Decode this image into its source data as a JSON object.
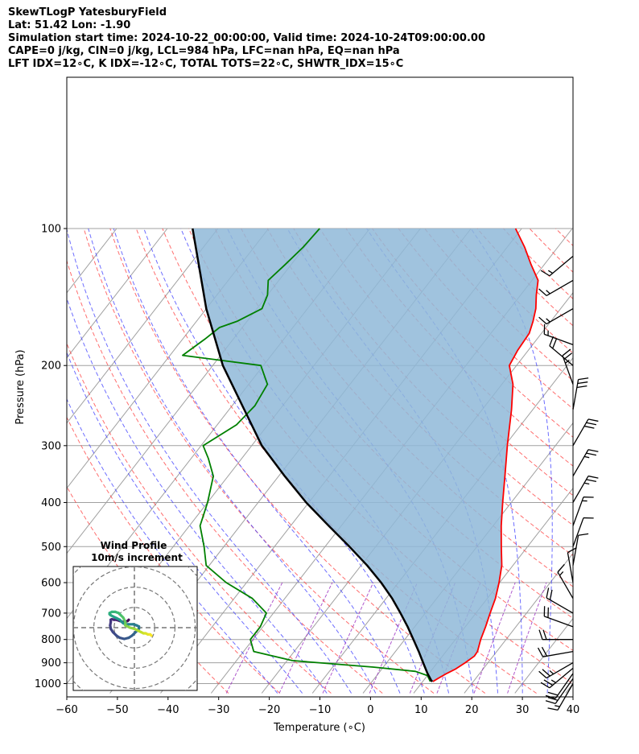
{
  "header": {
    "line1": "SkewTLogP YatesburyField",
    "line2": "Lat: 51.42   Lon: -1.90",
    "line3": "Simulation start time: 2024-10-22_00:00:00, Valid time: 2024-10-24T09:00:00.00",
    "line4": "CAPE=0 j/kg, CIN=0 j/kg, LCL=984 hPa, LFC=nan hPa, EQ=nan hPa",
    "line5": "LFT IDX=12∘C, K IDX=-12∘C, TOTAL TOTS=22∘C, SHWTR_IDX=15∘C"
  },
  "chart_data": [
    {
      "type": "line",
      "xlabel": "Temperature (∘C)",
      "ylabel": "Pressure (hPa)",
      "xlim": [
        -60,
        40
      ],
      "ylim": [
        1050,
        100
      ],
      "y_scale": "log",
      "skew": true,
      "x_ticks": [
        "−60",
        "−50",
        "−40",
        "−30",
        "−20",
        "−10",
        "0",
        "10",
        "20",
        "30",
        "40"
      ],
      "x_tick_values": [
        -60,
        -50,
        -40,
        -30,
        -20,
        -10,
        0,
        10,
        20,
        30,
        40
      ],
      "y_ticks": [
        "1000",
        "900",
        "800",
        "700",
        "600",
        "500",
        "400",
        "300",
        "200",
        "100"
      ],
      "y_tick_values": [
        1000,
        900,
        800,
        700,
        600,
        500,
        400,
        300,
        200,
        100
      ],
      "grid": true,
      "colors": {
        "temperature": "#ff0000",
        "dewpoint": "#008000",
        "parcel": "#000000",
        "cape_fill": "#8fb8d8",
        "dry_adiabat": "#ff3c3c",
        "moist_adiabat": "#3c3cff",
        "mixing_ratio": "#9b30c0",
        "isotherm": "#a0a0a0"
      },
      "series": [
        {
          "key": "temperature",
          "p": [
            990,
            975,
            950,
            930,
            900,
            870,
            850,
            800,
            750,
            700,
            650,
            600,
            550,
            500,
            450,
            400,
            350,
            300,
            250,
            220,
            200,
            185,
            170,
            160,
            150,
            140,
            130,
            120,
            110,
            100
          ],
          "t": [
            12,
            12.5,
            13.5,
            14.5,
            15.5,
            16.3,
            16.2,
            15,
            14,
            12.8,
            11.6,
            9.9,
            7.8,
            4.8,
            1.6,
            -1.7,
            -5.3,
            -9.5,
            -14.2,
            -17.8,
            -21.4,
            -22.1,
            -22.4,
            -23.5,
            -24.9,
            -26.9,
            -28.8,
            -32.6,
            -36.5,
            -41.2
          ]
        },
        {
          "key": "dewpoint",
          "p": [
            990,
            960,
            940,
            920,
            890,
            850,
            800,
            750,
            700,
            650,
            600,
            550,
            500,
            450,
            400,
            350,
            320,
            300,
            270,
            245,
            220,
            200,
            190,
            175,
            165,
            160,
            150,
            140,
            130,
            120,
            110,
            100
          ],
          "t": [
            11.5,
            10,
            7,
            -2,
            -19,
            -28,
            -30.5,
            -30.5,
            -31.4,
            -36.4,
            -44,
            -50.6,
            -53.9,
            -57.9,
            -60,
            -62.9,
            -66.6,
            -69.6,
            -66.2,
            -65.5,
            -66.3,
            -70.5,
            -87.5,
            -85.6,
            -84.5,
            -82,
            -79,
            -80,
            -82.1,
            -81.2,
            -80.3,
            -79.9
          ]
        },
        {
          "key": "parcel",
          "p": [
            990,
            984,
            950,
            900,
            850,
            800,
            750,
            700,
            650,
            600,
            550,
            500,
            450,
            400,
            350,
            300,
            250,
            200,
            150,
            100
          ],
          "t": [
            11.9,
            11.5,
            9.7,
            7.2,
            4.6,
            1.7,
            -1.4,
            -4.9,
            -8.8,
            -13.4,
            -18.8,
            -25.2,
            -32.5,
            -40.5,
            -48.8,
            -58,
            -67,
            -78,
            -90,
            -105
          ]
        }
      ]
    },
    {
      "type": "scatter",
      "title": "Wind Profile",
      "subtitle": "10m/s increment",
      "colormap": "viridis",
      "u": [
        -5,
        -6,
        -8,
        -10,
        -13,
        -16,
        -18,
        -20,
        -21,
        -21,
        -21.5,
        -21,
        -19,
        -16,
        -13,
        -9,
        -5,
        -2,
        0,
        2,
        3,
        4,
        4,
        2,
        -1,
        -5,
        -8,
        -10,
        -11,
        -13,
        -15,
        -17,
        -19,
        -21,
        -22,
        -22,
        -20,
        -17,
        -14,
        -12,
        -10,
        -9,
        -8,
        -8,
        -8,
        -6,
        -4,
        0,
        2,
        4,
        6,
        8,
        10,
        12,
        14,
        15,
        15
      ],
      "v": [
        7,
        6,
        5,
        5,
        6,
        7,
        7,
        7.5,
        7,
        5,
        2,
        -1,
        -4,
        -7,
        -9,
        -10,
        -9,
        -7,
        -5,
        -3,
        -2,
        -1,
        1,
        2,
        3,
        3,
        3,
        4,
        5,
        7,
        8,
        9,
        10,
        11,
        12,
        13,
        14,
        14,
        13,
        11,
        9,
        7,
        5,
        3,
        2,
        1,
        0,
        -1,
        -2,
        -3,
        -4,
        -5,
        -5,
        -6,
        -6,
        -7,
        -7
      ]
    }
  ],
  "wind_barbs": [
    {
      "p": 1000,
      "speed_kt": 15,
      "dir_deg": 210
    },
    {
      "p": 975,
      "speed_kt": 20,
      "dir_deg": 215
    },
    {
      "p": 950,
      "speed_kt": 20,
      "dir_deg": 215
    },
    {
      "p": 925,
      "speed_kt": 25,
      "dir_deg": 230
    },
    {
      "p": 900,
      "speed_kt": 25,
      "dir_deg": 240
    },
    {
      "p": 850,
      "speed_kt": 20,
      "dir_deg": 260
    },
    {
      "p": 800,
      "speed_kt": 20,
      "dir_deg": 270
    },
    {
      "p": 750,
      "speed_kt": 20,
      "dir_deg": 290
    },
    {
      "p": 700,
      "speed_kt": 20,
      "dir_deg": 300
    },
    {
      "p": 650,
      "speed_kt": 15,
      "dir_deg": 330
    },
    {
      "p": 600,
      "speed_kt": 10,
      "dir_deg": 350
    },
    {
      "p": 550,
      "speed_kt": 10,
      "dir_deg": 10
    },
    {
      "p": 500,
      "speed_kt": 10,
      "dir_deg": 20
    },
    {
      "p": 450,
      "speed_kt": 15,
      "dir_deg": 20
    },
    {
      "p": 400,
      "speed_kt": 25,
      "dir_deg": 30
    },
    {
      "p": 350,
      "speed_kt": 25,
      "dir_deg": 30
    },
    {
      "p": 300,
      "speed_kt": 30,
      "dir_deg": 30
    },
    {
      "p": 250,
      "speed_kt": 30,
      "dir_deg": 10
    },
    {
      "p": 220,
      "speed_kt": 25,
      "dir_deg": 340
    },
    {
      "p": 200,
      "speed_kt": 20,
      "dir_deg": 310
    },
    {
      "p": 180,
      "speed_kt": 15,
      "dir_deg": 290
    },
    {
      "p": 150,
      "speed_kt": 15,
      "dir_deg": 240
    },
    {
      "p": 130,
      "speed_kt": 15,
      "dir_deg": 240
    },
    {
      "p": 115,
      "speed_kt": 15,
      "dir_deg": 230
    }
  ]
}
